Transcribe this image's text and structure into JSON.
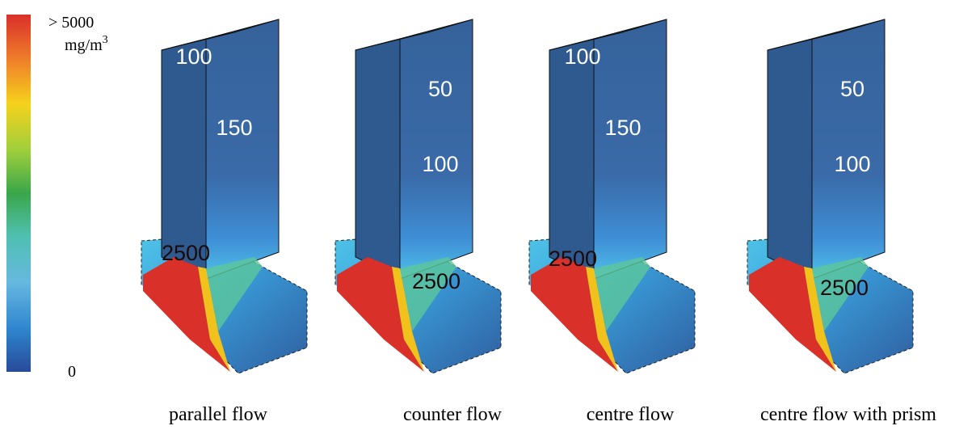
{
  "colorbar": {
    "max_label": "> 5000",
    "unit": "mg/m",
    "unit_exp": "3",
    "min_label": "0"
  },
  "panels": [
    {
      "caption": "parallel flow",
      "labels": [
        "100",
        "150",
        "2500"
      ]
    },
    {
      "caption": "counter flow",
      "labels": [
        "50",
        "100",
        "2500"
      ]
    },
    {
      "caption": "centre flow",
      "labels": [
        "100",
        "150",
        "2500"
      ]
    },
    {
      "caption": "centre flow with prism",
      "labels": [
        "50",
        "100",
        "2500"
      ]
    }
  ]
}
